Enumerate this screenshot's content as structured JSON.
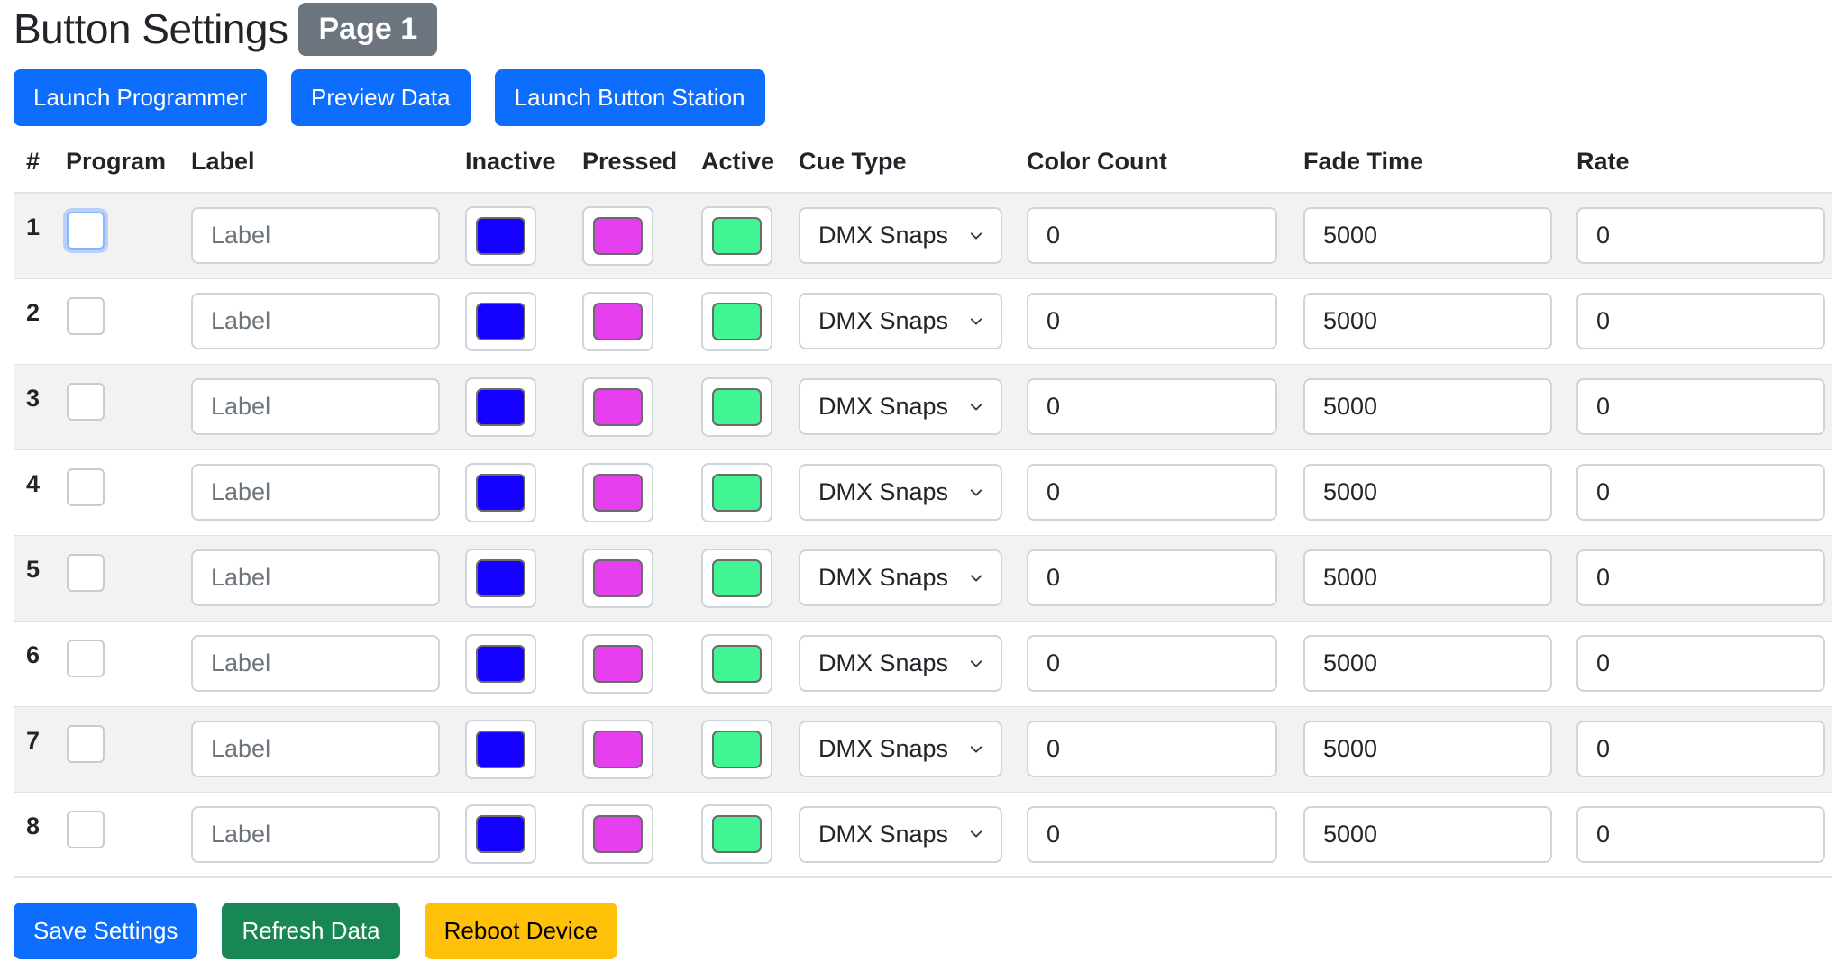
{
  "header": {
    "title": "Button Settings",
    "badge": "Page 1"
  },
  "top_buttons": {
    "launch_programmer": "Launch Programmer",
    "preview_data": "Preview Data",
    "launch_button_station": "Launch Button Station"
  },
  "table": {
    "columns": [
      "#",
      "Program",
      "Label",
      "Inactive",
      "Pressed",
      "Active",
      "Cue Type",
      "Color Count",
      "Fade Time",
      "Rate"
    ],
    "label_placeholder": "Label",
    "colors": {
      "inactive": "#1400ff",
      "pressed": "#e53ff0",
      "active": "#42f593"
    },
    "rows": [
      {
        "num": "1",
        "label": "",
        "cue_type": "DMX Snaps",
        "color_count": "0",
        "fade_time": "5000",
        "rate": "0"
      },
      {
        "num": "2",
        "label": "",
        "cue_type": "DMX Snaps",
        "color_count": "0",
        "fade_time": "5000",
        "rate": "0"
      },
      {
        "num": "3",
        "label": "",
        "cue_type": "DMX Snaps",
        "color_count": "0",
        "fade_time": "5000",
        "rate": "0"
      },
      {
        "num": "4",
        "label": "",
        "cue_type": "DMX Snaps",
        "color_count": "0",
        "fade_time": "5000",
        "rate": "0"
      },
      {
        "num": "5",
        "label": "",
        "cue_type": "DMX Snaps",
        "color_count": "0",
        "fade_time": "5000",
        "rate": "0"
      },
      {
        "num": "6",
        "label": "",
        "cue_type": "DMX Snaps",
        "color_count": "0",
        "fade_time": "5000",
        "rate": "0"
      },
      {
        "num": "7",
        "label": "",
        "cue_type": "DMX Snaps",
        "color_count": "0",
        "fade_time": "5000",
        "rate": "0"
      },
      {
        "num": "8",
        "label": "",
        "cue_type": "DMX Snaps",
        "color_count": "0",
        "fade_time": "5000",
        "rate": "0"
      }
    ]
  },
  "bottom_buttons": {
    "save_settings": "Save Settings",
    "refresh_data": "Refresh Data",
    "reboot_device": "Reboot Device"
  },
  "icons": {
    "select_chevron": "chevron-down-icon"
  }
}
